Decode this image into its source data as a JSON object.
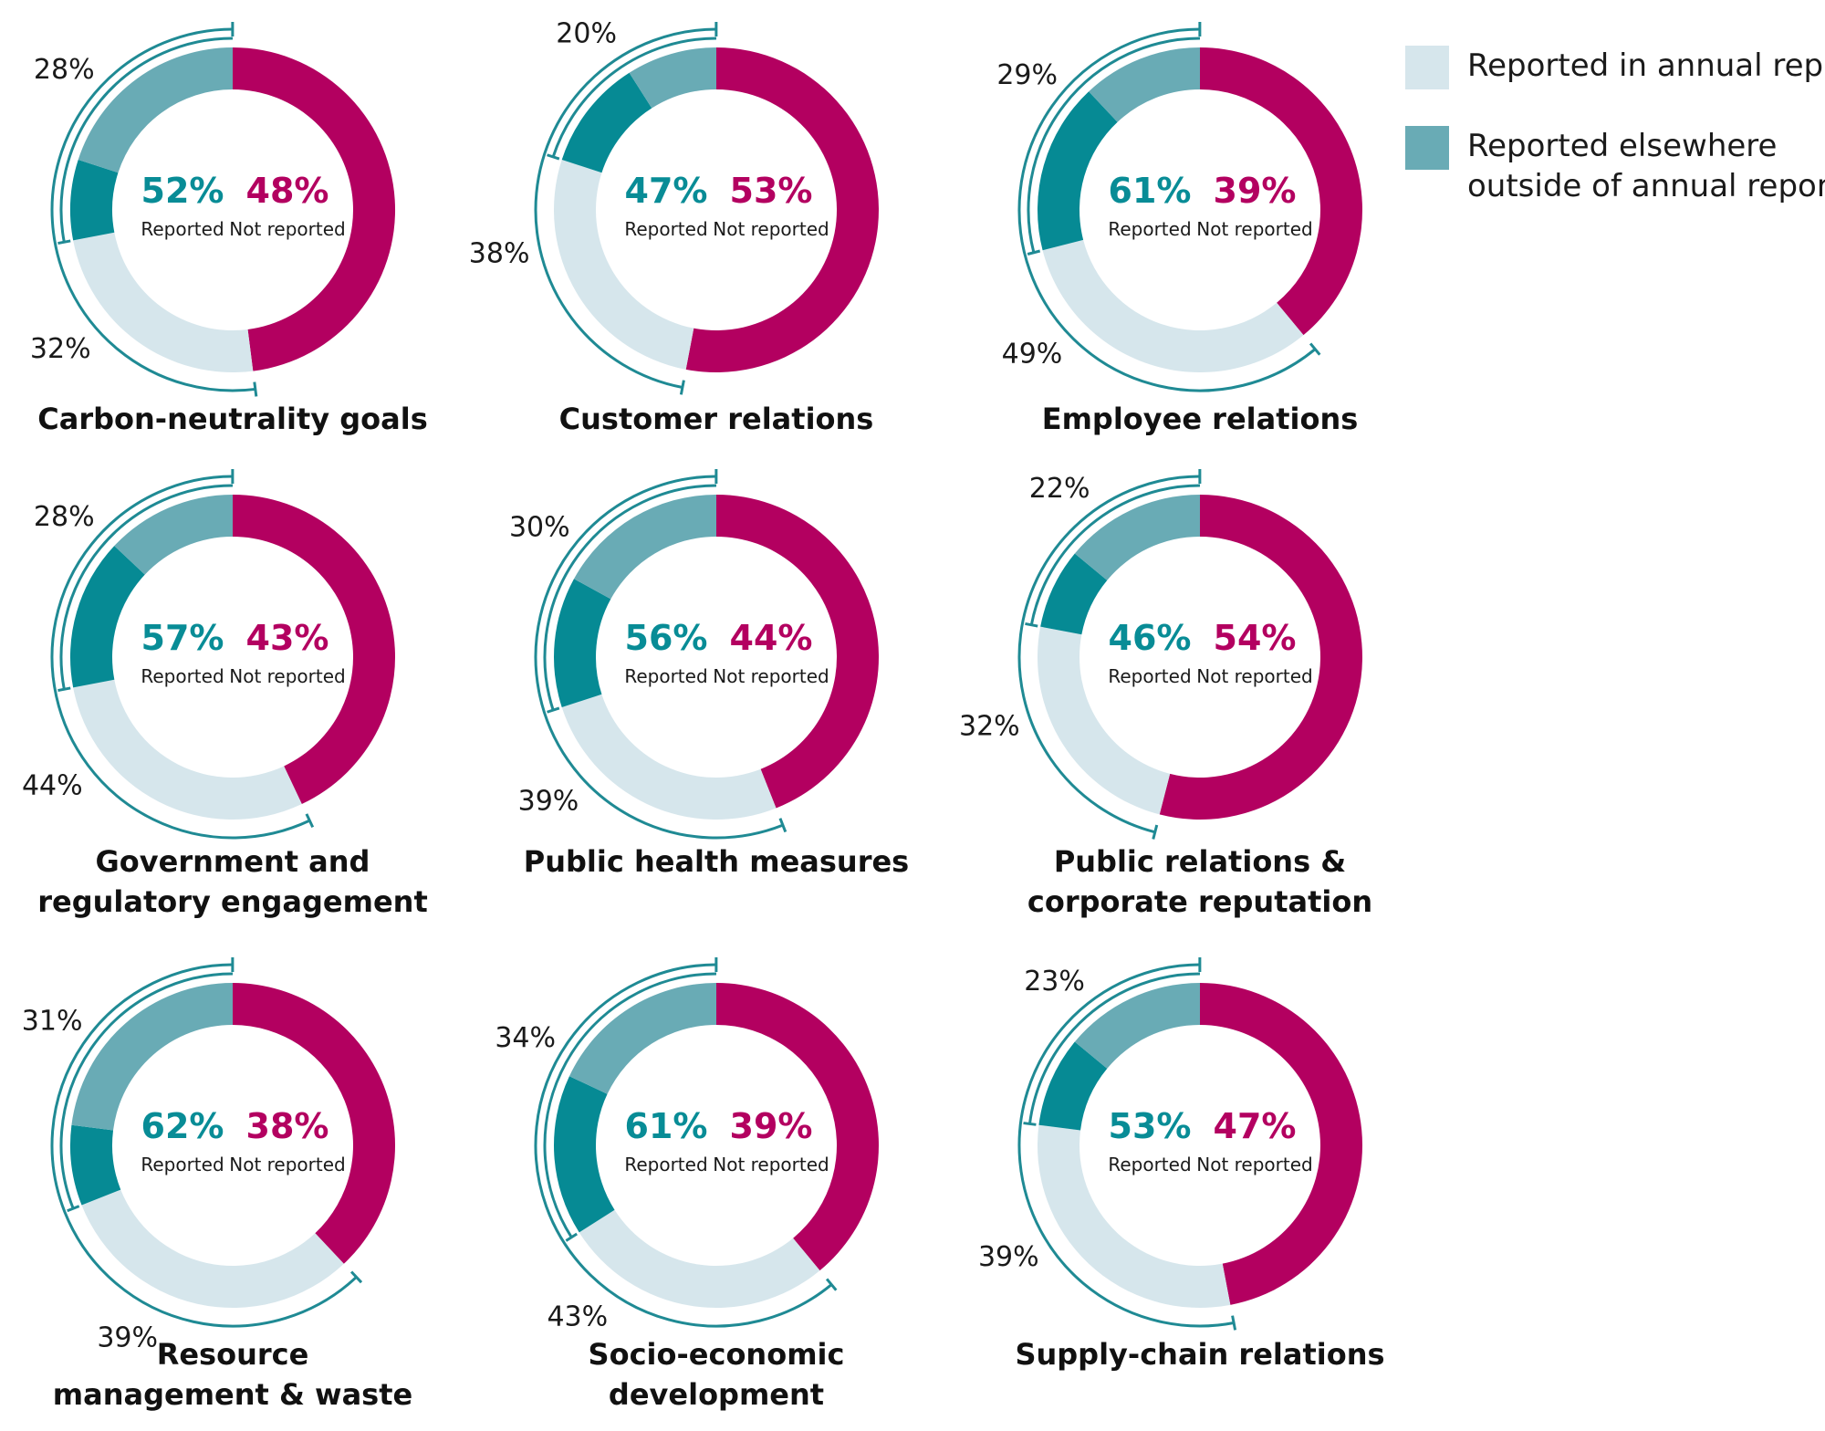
{
  "colors": {
    "annual": "#d6e6ec",
    "elsewhere": "#69abb5",
    "elsewhere_dark": "#068a94",
    "not_reported": "#b30060",
    "reported_text": "#088c96",
    "not_reported_text": "#b30060",
    "bracket": "#1f8a94"
  },
  "labels": {
    "reported": "Reported",
    "not_reported": "Not reported"
  },
  "legend": [
    {
      "label": "Reported in annual report",
      "color": "#d6e6ec"
    },
    {
      "label": "Reported elsewhere outside of annual report",
      "color": "#69abb5"
    }
  ],
  "chart_data": {
    "type": "donut",
    "panels": [
      {
        "title": [
          "Carbon-neutrality goals"
        ],
        "reported": "52%",
        "not_reported": "48%",
        "elsewhere_label": "28%",
        "annual_label": "32%",
        "reported_value": 52,
        "not_reported_value": 48,
        "elsewhere_value": 28,
        "annual_value": 32
      },
      {
        "title": [
          "Customer relations"
        ],
        "reported": "47%",
        "not_reported": "53%",
        "elsewhere_label": "20%",
        "annual_label": "38%",
        "reported_value": 47,
        "not_reported_value": 53,
        "elsewhere_value": 20,
        "annual_value": 38
      },
      {
        "title": [
          "Employee relations"
        ],
        "reported": "61%",
        "not_reported": "39%",
        "elsewhere_label": "29%",
        "annual_label": "49%",
        "reported_value": 61,
        "not_reported_value": 39,
        "elsewhere_value": 29,
        "annual_value": 49
      },
      {
        "title": [
          "Government and",
          "regulatory engagement"
        ],
        "reported": "57%",
        "not_reported": "43%",
        "elsewhere_label": "28%",
        "annual_label": "44%",
        "reported_value": 57,
        "not_reported_value": 43,
        "elsewhere_value": 28,
        "annual_value": 44
      },
      {
        "title": [
          "Public health measures"
        ],
        "reported": "56%",
        "not_reported": "44%",
        "elsewhere_label": "30%",
        "annual_label": "39%",
        "reported_value": 56,
        "not_reported_value": 44,
        "elsewhere_value": 30,
        "annual_value": 39
      },
      {
        "title": [
          "Public relations &",
          "corporate reputation"
        ],
        "reported": "46%",
        "not_reported": "54%",
        "elsewhere_label": "22%",
        "annual_label": "32%",
        "reported_value": 46,
        "not_reported_value": 54,
        "elsewhere_value": 22,
        "annual_value": 32
      },
      {
        "title": [
          "Resource",
          "management & waste"
        ],
        "reported": "62%",
        "not_reported": "38%",
        "elsewhere_label": "31%",
        "annual_label": "39%",
        "reported_value": 62,
        "not_reported_value": 38,
        "elsewhere_value": 31,
        "annual_value": 39
      },
      {
        "title": [
          "Socio-economic",
          "development"
        ],
        "reported": "61%",
        "not_reported": "39%",
        "elsewhere_label": "34%",
        "annual_label": "43%",
        "reported_value": 61,
        "not_reported_value": 39,
        "elsewhere_value": 34,
        "annual_value": 43
      },
      {
        "title": [
          "Supply-chain relations"
        ],
        "reported": "53%",
        "not_reported": "47%",
        "elsewhere_label": "23%",
        "annual_label": "39%",
        "reported_value": 53,
        "not_reported_value": 47,
        "elsewhere_value": 23,
        "annual_value": 39
      }
    ]
  }
}
